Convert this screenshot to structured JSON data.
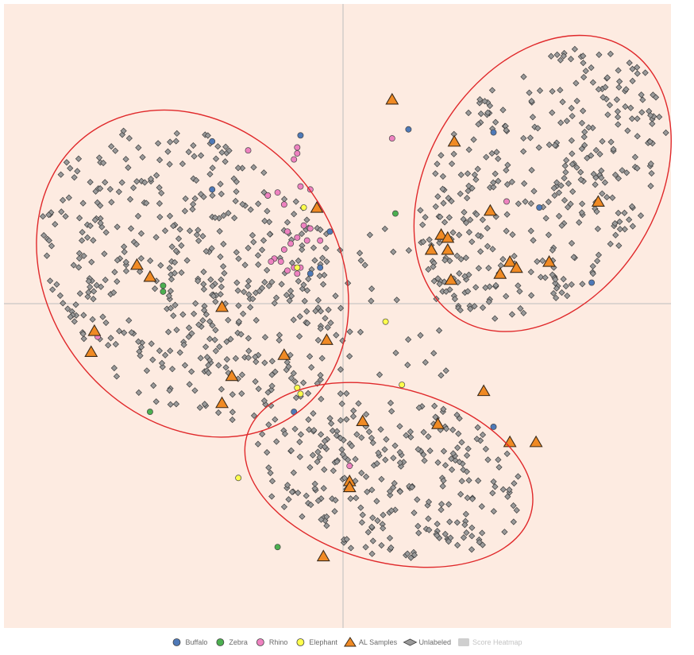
{
  "colors": {
    "background": "#fdebe1",
    "axis": "#bdbdbd",
    "ellipse": "#e0282a",
    "buffalo": "#4e79b7",
    "zebra": "#4caf50",
    "rhino": "#ee82c0",
    "elephant": "#ffff4d",
    "al_samples": "#f08a24",
    "unlabeled": "#9a9a9a",
    "score_heatmap": "#cfcfcf"
  },
  "legend": [
    {
      "key": "buffalo",
      "label": "Buffalo",
      "marker": "circle",
      "active": true
    },
    {
      "key": "zebra",
      "label": "Zebra",
      "marker": "circle",
      "active": true
    },
    {
      "key": "rhino",
      "label": "Rhino",
      "marker": "circle",
      "active": true
    },
    {
      "key": "elephant",
      "label": "Elephant",
      "marker": "circle",
      "active": true
    },
    {
      "key": "al_samples",
      "label": "AL Samples",
      "marker": "triangle",
      "active": true
    },
    {
      "key": "unlabeled",
      "label": "Unlabeled",
      "marker": "diamond",
      "active": true
    },
    {
      "key": "score_heatmap",
      "label": "Score Heatmap",
      "marker": "rect",
      "active": false
    }
  ],
  "chart_data": {
    "type": "scatter",
    "title": "",
    "xlabel": "",
    "ylabel": "",
    "xlim": [
      -1,
      1
    ],
    "ylim": [
      -1,
      1
    ],
    "grid": false,
    "legend_position": "bottom",
    "series": [
      {
        "name": "Buffalo",
        "points": [
          [
            -0.4,
            0.54
          ],
          [
            -0.4,
            0.38
          ],
          [
            -0.13,
            0.56
          ],
          [
            -0.04,
            0.24
          ],
          [
            -0.1,
            0.1
          ],
          [
            -0.07,
            0.12
          ],
          [
            -0.15,
            -0.36
          ],
          [
            0.2,
            0.58
          ],
          [
            0.46,
            0.57
          ],
          [
            0.6,
            0.32
          ],
          [
            0.76,
            0.07
          ],
          [
            0.46,
            -0.41
          ]
        ]
      },
      {
        "name": "Zebra",
        "points": [
          [
            -0.55,
            0.06
          ],
          [
            -0.55,
            0.04
          ],
          [
            -0.23,
            0.36
          ],
          [
            -0.59,
            -0.36
          ],
          [
            0.16,
            0.3
          ],
          [
            -0.2,
            -0.81
          ]
        ]
      },
      {
        "name": "Rhino",
        "points": [
          [
            -0.29,
            0.51
          ],
          [
            -0.14,
            0.5
          ],
          [
            -0.15,
            0.48
          ],
          [
            -0.14,
            0.52
          ],
          [
            -0.13,
            0.39
          ],
          [
            -0.1,
            0.38
          ],
          [
            -0.18,
            0.33
          ],
          [
            -0.2,
            0.37
          ],
          [
            -0.23,
            0.36
          ],
          [
            -0.12,
            0.26
          ],
          [
            -0.1,
            0.25
          ],
          [
            -0.14,
            0.22
          ],
          [
            -0.16,
            0.2
          ],
          [
            -0.11,
            0.21
          ],
          [
            -0.18,
            0.18
          ],
          [
            -0.17,
            0.24
          ],
          [
            -0.19,
            0.14
          ],
          [
            -0.07,
            0.21
          ],
          [
            -0.21,
            0.15
          ],
          [
            -0.22,
            0.14
          ],
          [
            -0.14,
            0.1
          ],
          [
            -0.13,
            0.12
          ],
          [
            -0.15,
            0.12
          ],
          [
            -0.17,
            0.11
          ],
          [
            0.15,
            0.55
          ],
          [
            0.5,
            0.34
          ],
          [
            -0.75,
            -0.11
          ],
          [
            0.02,
            -0.54
          ]
        ]
      },
      {
        "name": "Elephant",
        "points": [
          [
            -0.12,
            0.32
          ],
          [
            -0.14,
            0.12
          ],
          [
            -0.14,
            -0.28
          ],
          [
            -0.13,
            -0.3
          ],
          [
            -0.32,
            -0.58
          ],
          [
            0.13,
            -0.06
          ],
          [
            0.18,
            -0.27
          ]
        ]
      },
      {
        "name": "AL Samples",
        "points": [
          [
            0.15,
            0.68
          ],
          [
            0.34,
            0.54
          ],
          [
            0.78,
            0.34
          ],
          [
            0.45,
            0.31
          ],
          [
            0.3,
            0.23
          ],
          [
            0.32,
            0.22
          ],
          [
            0.27,
            0.18
          ],
          [
            0.32,
            0.18
          ],
          [
            0.33,
            0.08
          ],
          [
            0.51,
            0.14
          ],
          [
            0.53,
            0.12
          ],
          [
            0.63,
            0.14
          ],
          [
            0.48,
            0.1
          ],
          [
            -0.08,
            0.32
          ],
          [
            -0.63,
            0.13
          ],
          [
            -0.59,
            0.09
          ],
          [
            -0.37,
            -0.01
          ],
          [
            -0.05,
            -0.12
          ],
          [
            -0.18,
            -0.17
          ],
          [
            -0.34,
            -0.24
          ],
          [
            -0.37,
            -0.33
          ],
          [
            -0.76,
            -0.09
          ],
          [
            -0.77,
            -0.16
          ],
          [
            0.43,
            -0.29
          ],
          [
            0.06,
            -0.39
          ],
          [
            0.29,
            -0.4
          ],
          [
            0.51,
            -0.46
          ],
          [
            0.59,
            -0.46
          ],
          [
            0.02,
            -0.59
          ],
          [
            0.02,
            -0.61
          ],
          [
            -0.06,
            -0.84
          ]
        ]
      },
      {
        "name": "Unlabeled",
        "generator": "clusters",
        "count": 1110
      }
    ],
    "clusters": [
      {
        "center": [
          -0.46,
          0.1
        ],
        "rx": 0.44,
        "ry": 0.58,
        "rotation_deg": 38
      },
      {
        "center": [
          0.61,
          0.4
        ],
        "rx": 0.35,
        "ry": 0.53,
        "rotation_deg": -32
      },
      {
        "center": [
          0.14,
          -0.57
        ],
        "rx": 0.45,
        "ry": 0.29,
        "rotation_deg": -15
      }
    ]
  }
}
